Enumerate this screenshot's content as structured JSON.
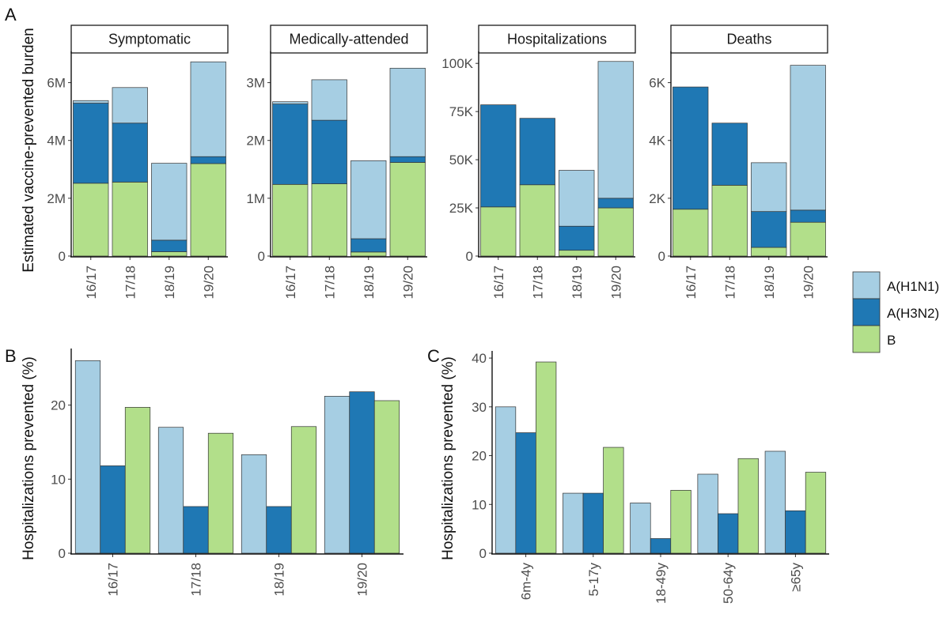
{
  "colors": {
    "A(H1N1)": "#a6cee3",
    "A(H3N2)": "#1f78b4",
    "B": "#b2df8a"
  },
  "legend": {
    "items": [
      "A(H1N1)",
      "A(H3N2)",
      "B"
    ],
    "placement": "right"
  },
  "panel_labels": {
    "a": "A",
    "b": "B",
    "c": "C"
  },
  "chart_data": [
    {
      "panel": "A",
      "type": "bar",
      "stacked": true,
      "ylabel": "Estimated vaccine-prevented burden",
      "categories": [
        "16/17",
        "17/18",
        "18/19",
        "19/20"
      ],
      "facets": [
        {
          "title": "Symptomatic",
          "ylim": [
            0,
            7000000
          ],
          "yticks": [
            0,
            2000000,
            4000000,
            6000000
          ],
          "ytick_labels": [
            "0",
            "2M",
            "4M",
            "6M"
          ],
          "series": [
            {
              "name": "B",
              "values": [
                2520000,
                2560000,
                150000,
                3200000
              ]
            },
            {
              "name": "A(H3N2)",
              "values": [
                2770000,
                2040000,
                400000,
                240000
              ]
            },
            {
              "name": "A(H1N1)",
              "values": [
                90000,
                1230000,
                2660000,
                3280000
              ]
            }
          ]
        },
        {
          "title": "Medically-attended",
          "ylim": [
            0,
            3500000
          ],
          "yticks": [
            0,
            1000000,
            2000000,
            3000000
          ],
          "ytick_labels": [
            "0",
            "1M",
            "2M",
            "3M"
          ],
          "series": [
            {
              "name": "B",
              "values": [
                1240000,
                1250000,
                70000,
                1620000
              ]
            },
            {
              "name": "A(H3N2)",
              "values": [
                1390000,
                1100000,
                230000,
                100000
              ]
            },
            {
              "name": "A(H1N1)",
              "values": [
                40000,
                700000,
                1350000,
                1530000
              ]
            }
          ]
        },
        {
          "title": "Hospitalizations",
          "ylim": [
            0,
            105000
          ],
          "yticks": [
            0,
            25000,
            50000,
            75000,
            100000
          ],
          "ytick_labels": [
            "0",
            "25K",
            "50K",
            "75K",
            "100K"
          ],
          "series": [
            {
              "name": "B",
              "values": [
                25500,
                37000,
                3000,
                25000
              ]
            },
            {
              "name": "A(H3N2)",
              "values": [
                53000,
                34500,
                12500,
                5000
              ]
            },
            {
              "name": "A(H1N1)",
              "values": [
                0,
                0,
                29000,
                71000
              ]
            }
          ]
        },
        {
          "title": "Deaths",
          "ylim": [
            0,
            7000
          ],
          "yticks": [
            0,
            2000,
            4000,
            6000
          ],
          "ytick_labels": [
            "0",
            "2K",
            "4K",
            "6K"
          ],
          "series": [
            {
              "name": "B",
              "values": [
                1620,
                2450,
                300,
                1170
              ]
            },
            {
              "name": "A(H3N2)",
              "values": [
                4230,
                2150,
                1240,
                420
              ]
            },
            {
              "name": "A(H1N1)",
              "values": [
                0,
                0,
                1690,
                5010
              ]
            }
          ]
        }
      ]
    },
    {
      "panel": "B",
      "type": "bar",
      "ylabel": "Hospitalizations prevented (%)",
      "categories": [
        "16/17",
        "17/18",
        "18/19",
        "19/20"
      ],
      "ylim": [
        0,
        27
      ],
      "yticks": [
        0,
        10,
        20
      ],
      "series": [
        {
          "name": "A(H1N1)",
          "values": [
            26.0,
            17.0,
            13.3,
            21.2
          ]
        },
        {
          "name": "A(H3N2)",
          "values": [
            11.8,
            6.3,
            6.3,
            21.8
          ]
        },
        {
          "name": "B",
          "values": [
            19.7,
            16.2,
            17.1,
            20.6
          ]
        }
      ]
    },
    {
      "panel": "C",
      "type": "bar",
      "ylabel": "Hospitalizations prevented (%)",
      "categories": [
        "6m-4y",
        "5-17y",
        "18-49y",
        "50-64y",
        "≥65y"
      ],
      "ylim": [
        0,
        40.5
      ],
      "yticks": [
        0,
        10,
        20,
        30,
        40
      ],
      "series": [
        {
          "name": "A(H1N1)",
          "values": [
            30.0,
            12.3,
            10.3,
            16.2,
            20.9
          ]
        },
        {
          "name": "A(H3N2)",
          "values": [
            24.7,
            12.3,
            3.0,
            8.1,
            8.7
          ]
        },
        {
          "name": "B",
          "values": [
            39.2,
            21.7,
            12.9,
            19.4,
            16.6
          ]
        }
      ]
    }
  ]
}
